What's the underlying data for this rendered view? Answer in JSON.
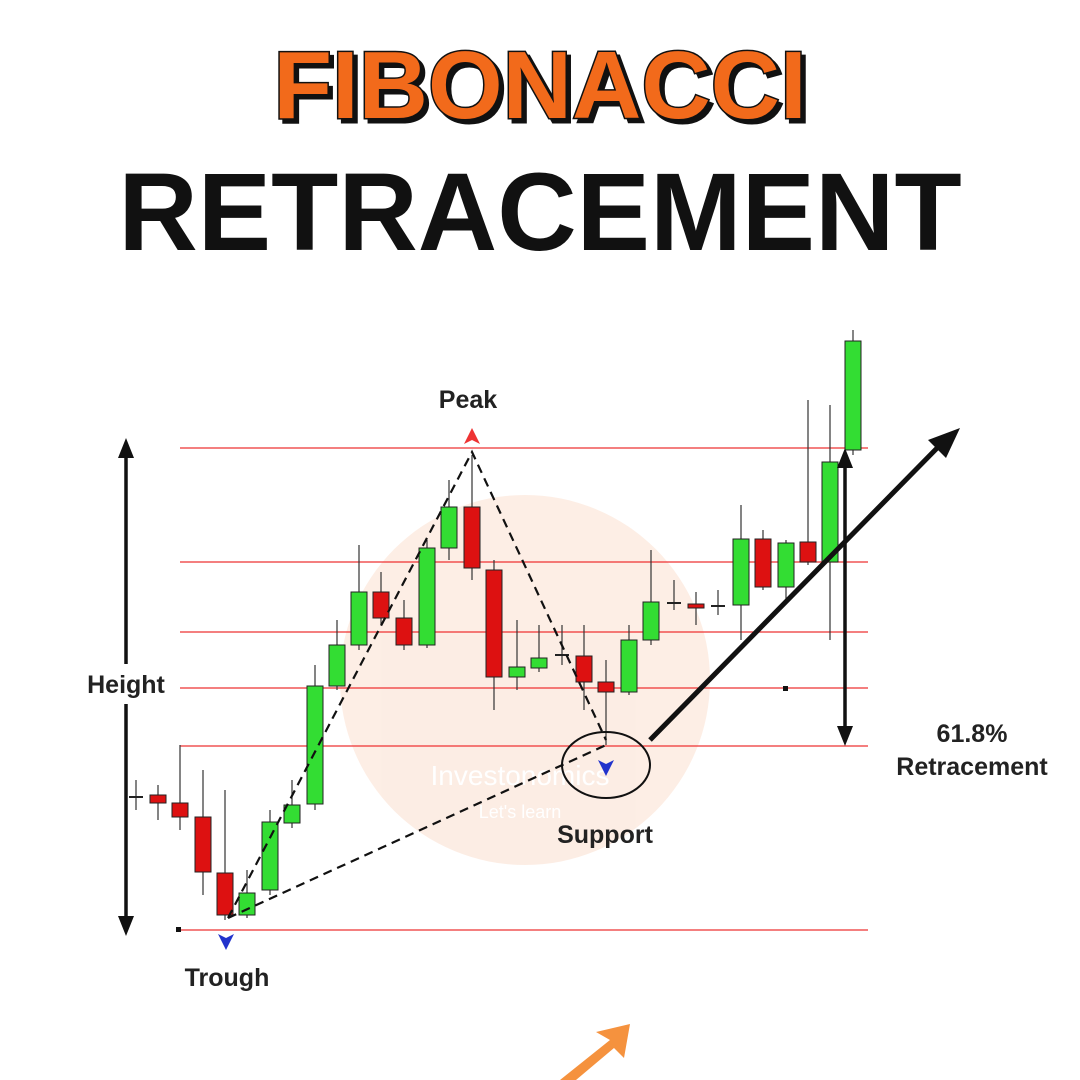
{
  "header": {
    "title_line1": "FIBONACCI",
    "title_line2": "RETRACEMENT"
  },
  "labels": {
    "peak": "Peak",
    "height": "Height",
    "trough": "Trough",
    "support": "Support",
    "percent": "61.8%",
    "retracement": "Retracement"
  },
  "watermark": {
    "brand": "Investonomics",
    "tagline": "Let's learn"
  }
}
